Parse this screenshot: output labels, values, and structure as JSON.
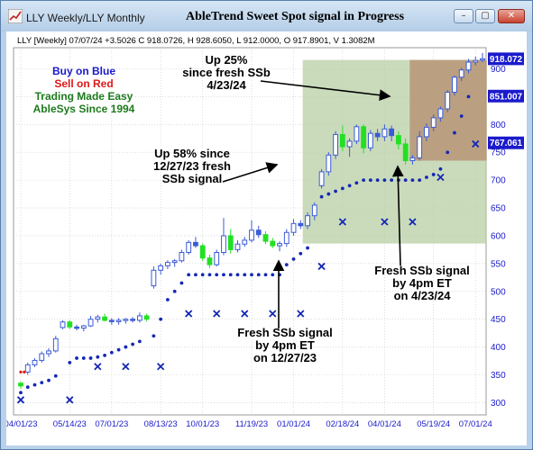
{
  "window": {
    "tab_title": "LLY Weekly/LLY Monthly",
    "title": "AbleTrend Sweet Spot signal in Progress",
    "buttons": {
      "minimize": "–",
      "maximize": "▢",
      "close": "✕"
    }
  },
  "colors": {
    "buy": "#22e022",
    "sell": "#e01818",
    "neutral": "#3b5bd6",
    "dots": "#1428b4",
    "axis_text": "#1a1acc",
    "grid": "#c8c8c8",
    "zone_green": "#b4cc9e",
    "zone_brown": "#b48c6e"
  },
  "chart_data": {
    "type": "candlestick",
    "info_line": "LLY [Weekly] 07/07/24 +3.5026 C 918.0726, H 928.6050, L 912.0000, O 917.8901, V 1.3082M",
    "x_ticks": [
      "04/01/23",
      "05/14/23",
      "07/01/23",
      "08/13/23",
      "10/01/23",
      "11/19/23",
      "01/01/24",
      "02/18/24",
      "04/01/24",
      "05/19/24",
      "07/01/24"
    ],
    "y_ticks": [
      300,
      350,
      400,
      450,
      500,
      550,
      600,
      650,
      700,
      750,
      800,
      850,
      900
    ],
    "ylim": [
      278,
      938
    ],
    "price_labels": [
      "918.072",
      "851.007",
      "767.061"
    ],
    "price_label_values": [
      918,
      851,
      767
    ],
    "legend": [
      {
        "text": "Buy on Blue",
        "color": "#1a1acc"
      },
      {
        "text": "Sell on Red",
        "color": "#e01818"
      },
      {
        "text": "Trading Made Easy",
        "color": "#1e7a1e"
      },
      {
        "text": "AbleSys Since 1994",
        "color": "#1e7a1e"
      }
    ],
    "annotations": {
      "up25": [
        "Up 25%",
        "since fresh SSb",
        "4/23/24"
      ],
      "up58": [
        "Up 58% since",
        "12/27/23 fresh",
        "SSb signal"
      ],
      "fresh_apr": [
        "Fresh SSb signal",
        "by 4pm ET",
        "on 4/23/24"
      ],
      "fresh_dec": [
        "Fresh SSb signal",
        "by 4pm ET",
        "on 12/27/23"
      ]
    },
    "candles": [
      {
        "o": 330,
        "h": 338,
        "l": 325,
        "c": 335,
        "s": "buy"
      },
      {
        "o": 355,
        "h": 372,
        "l": 350,
        "c": 368,
        "s": "neutral"
      },
      {
        "o": 368,
        "h": 380,
        "l": 364,
        "c": 376,
        "s": "neutral"
      },
      {
        "o": 376,
        "h": 392,
        "l": 372,
        "c": 388,
        "s": "neutral"
      },
      {
        "o": 388,
        "h": 398,
        "l": 382,
        "c": 393,
        "s": "neutral"
      },
      {
        "o": 393,
        "h": 420,
        "l": 390,
        "c": 415,
        "s": "neutral"
      },
      {
        "o": 435,
        "h": 448,
        "l": 432,
        "c": 445,
        "s": "neutral"
      },
      {
        "o": 445,
        "h": 448,
        "l": 432,
        "c": 436,
        "s": "buy"
      },
      {
        "o": 436,
        "h": 440,
        "l": 430,
        "c": 434,
        "s": "neutral"
      },
      {
        "o": 434,
        "h": 440,
        "l": 428,
        "c": 438,
        "s": "neutral"
      },
      {
        "o": 438,
        "h": 456,
        "l": 436,
        "c": 450,
        "s": "neutral"
      },
      {
        "o": 450,
        "h": 458,
        "l": 444,
        "c": 454,
        "s": "neutral"
      },
      {
        "o": 454,
        "h": 460,
        "l": 446,
        "c": 448,
        "s": "buy"
      },
      {
        "o": 448,
        "h": 452,
        "l": 440,
        "c": 446,
        "s": "neutral"
      },
      {
        "o": 446,
        "h": 452,
        "l": 440,
        "c": 448,
        "s": "neutral"
      },
      {
        "o": 448,
        "h": 452,
        "l": 442,
        "c": 450,
        "s": "neutral"
      },
      {
        "o": 450,
        "h": 454,
        "l": 444,
        "c": 448,
        "s": "neutral"
      },
      {
        "o": 448,
        "h": 462,
        "l": 444,
        "c": 456,
        "s": "neutral"
      },
      {
        "o": 456,
        "h": 460,
        "l": 446,
        "c": 450,
        "s": "buy"
      },
      {
        "o": 510,
        "h": 545,
        "l": 505,
        "c": 538,
        "s": "neutral"
      },
      {
        "o": 538,
        "h": 550,
        "l": 530,
        "c": 546,
        "s": "neutral"
      },
      {
        "o": 546,
        "h": 556,
        "l": 540,
        "c": 552,
        "s": "neutral"
      },
      {
        "o": 552,
        "h": 558,
        "l": 544,
        "c": 555,
        "s": "neutral"
      },
      {
        "o": 555,
        "h": 575,
        "l": 552,
        "c": 570,
        "s": "neutral"
      },
      {
        "o": 570,
        "h": 592,
        "l": 566,
        "c": 588,
        "s": "neutral"
      },
      {
        "o": 588,
        "h": 598,
        "l": 578,
        "c": 582,
        "s": "neutral"
      },
      {
        "o": 582,
        "h": 586,
        "l": 555,
        "c": 560,
        "s": "buy"
      },
      {
        "o": 560,
        "h": 566,
        "l": 542,
        "c": 548,
        "s": "buy"
      },
      {
        "o": 548,
        "h": 575,
        "l": 545,
        "c": 570,
        "s": "neutral"
      },
      {
        "o": 570,
        "h": 632,
        "l": 565,
        "c": 600,
        "s": "neutral"
      },
      {
        "o": 600,
        "h": 612,
        "l": 568,
        "c": 575,
        "s": "buy"
      },
      {
        "o": 575,
        "h": 592,
        "l": 570,
        "c": 585,
        "s": "neutral"
      },
      {
        "o": 585,
        "h": 598,
        "l": 580,
        "c": 592,
        "s": "neutral"
      },
      {
        "o": 592,
        "h": 628,
        "l": 588,
        "c": 610,
        "s": "neutral"
      },
      {
        "o": 610,
        "h": 618,
        "l": 596,
        "c": 602,
        "s": "neutral"
      },
      {
        "o": 602,
        "h": 608,
        "l": 585,
        "c": 590,
        "s": "buy"
      },
      {
        "o": 590,
        "h": 596,
        "l": 578,
        "c": 582,
        "s": "buy"
      },
      {
        "o": 582,
        "h": 590,
        "l": 572,
        "c": 586,
        "s": "neutral"
      },
      {
        "o": 586,
        "h": 612,
        "l": 580,
        "c": 606,
        "s": "neutral"
      },
      {
        "o": 606,
        "h": 630,
        "l": 600,
        "c": 622,
        "s": "neutral"
      },
      {
        "o": 622,
        "h": 628,
        "l": 612,
        "c": 618,
        "s": "neutral"
      },
      {
        "o": 618,
        "h": 642,
        "l": 612,
        "c": 636,
        "s": "neutral"
      },
      {
        "o": 636,
        "h": 660,
        "l": 628,
        "c": 655,
        "s": "neutral"
      },
      {
        "o": 690,
        "h": 720,
        "l": 685,
        "c": 715,
        "s": "neutral"
      },
      {
        "o": 715,
        "h": 750,
        "l": 708,
        "c": 745,
        "s": "neutral"
      },
      {
        "o": 745,
        "h": 788,
        "l": 738,
        "c": 782,
        "s": "neutral"
      },
      {
        "o": 782,
        "h": 798,
        "l": 752,
        "c": 760,
        "s": "buy"
      },
      {
        "o": 760,
        "h": 775,
        "l": 742,
        "c": 770,
        "s": "neutral"
      },
      {
        "o": 770,
        "h": 800,
        "l": 765,
        "c": 796,
        "s": "neutral"
      },
      {
        "o": 796,
        "h": 800,
        "l": 748,
        "c": 758,
        "s": "buy"
      },
      {
        "o": 758,
        "h": 790,
        "l": 752,
        "c": 784,
        "s": "neutral"
      },
      {
        "o": 784,
        "h": 792,
        "l": 770,
        "c": 778,
        "s": "neutral"
      },
      {
        "o": 778,
        "h": 800,
        "l": 770,
        "c": 792,
        "s": "neutral"
      },
      {
        "o": 792,
        "h": 798,
        "l": 770,
        "c": 780,
        "s": "neutral"
      },
      {
        "o": 780,
        "h": 788,
        "l": 755,
        "c": 765,
        "s": "buy"
      },
      {
        "o": 765,
        "h": 775,
        "l": 728,
        "c": 735,
        "s": "buy"
      },
      {
        "o": 735,
        "h": 745,
        "l": 728,
        "c": 740,
        "s": "neutral"
      },
      {
        "o": 740,
        "h": 788,
        "l": 735,
        "c": 778,
        "s": "neutral"
      },
      {
        "o": 778,
        "h": 802,
        "l": 770,
        "c": 795,
        "s": "neutral"
      },
      {
        "o": 795,
        "h": 818,
        "l": 788,
        "c": 812,
        "s": "neutral"
      },
      {
        "o": 812,
        "h": 832,
        "l": 805,
        "c": 828,
        "s": "neutral"
      },
      {
        "o": 828,
        "h": 862,
        "l": 822,
        "c": 858,
        "s": "neutral"
      },
      {
        "o": 858,
        "h": 888,
        "l": 852,
        "c": 885,
        "s": "neutral"
      },
      {
        "o": 885,
        "h": 902,
        "l": 878,
        "c": 898,
        "s": "neutral"
      },
      {
        "o": 898,
        "h": 918,
        "l": 892,
        "c": 912,
        "s": "neutral"
      },
      {
        "o": 912,
        "h": 922,
        "l": 906,
        "c": 915,
        "s": "neutral"
      },
      {
        "o": 917.89,
        "h": 928.6,
        "l": 912,
        "c": 918.07,
        "s": "neutral"
      }
    ],
    "dot_series": [
      {
        "i": 0,
        "v": 318
      },
      {
        "i": 1,
        "v": 328
      },
      {
        "i": 2,
        "v": 332
      },
      {
        "i": 3,
        "v": 336
      },
      {
        "i": 4,
        "v": 340
      },
      {
        "i": 5,
        "v": 348
      },
      {
        "i": 7,
        "v": 372
      },
      {
        "i": 8,
        "v": 380
      },
      {
        "i": 9,
        "v": 380
      },
      {
        "i": 10,
        "v": 380
      },
      {
        "i": 11,
        "v": 382
      },
      {
        "i": 12,
        "v": 385
      },
      {
        "i": 13,
        "v": 390
      },
      {
        "i": 14,
        "v": 395
      },
      {
        "i": 15,
        "v": 400
      },
      {
        "i": 16,
        "v": 405
      },
      {
        "i": 17,
        "v": 410
      },
      {
        "i": 19,
        "v": 420
      },
      {
        "i": 20,
        "v": 450
      },
      {
        "i": 21,
        "v": 485
      },
      {
        "i": 22,
        "v": 500
      },
      {
        "i": 23,
        "v": 515
      },
      {
        "i": 24,
        "v": 530
      },
      {
        "i": 25,
        "v": 530
      },
      {
        "i": 26,
        "v": 530
      },
      {
        "i": 27,
        "v": 530
      },
      {
        "i": 28,
        "v": 530
      },
      {
        "i": 29,
        "v": 530
      },
      {
        "i": 30,
        "v": 530
      },
      {
        "i": 31,
        "v": 530
      },
      {
        "i": 32,
        "v": 530
      },
      {
        "i": 33,
        "v": 530
      },
      {
        "i": 34,
        "v": 530
      },
      {
        "i": 35,
        "v": 530
      },
      {
        "i": 36,
        "v": 530
      },
      {
        "i": 37,
        "v": 530
      },
      {
        "i": 38,
        "v": 548
      },
      {
        "i": 39,
        "v": 558
      },
      {
        "i": 40,
        "v": 568
      },
      {
        "i": 41,
        "v": 578
      },
      {
        "i": 43,
        "v": 670
      },
      {
        "i": 44,
        "v": 675
      },
      {
        "i": 45,
        "v": 680
      },
      {
        "i": 46,
        "v": 685
      },
      {
        "i": 47,
        "v": 690
      },
      {
        "i": 48,
        "v": 695
      },
      {
        "i": 49,
        "v": 700
      },
      {
        "i": 50,
        "v": 700
      },
      {
        "i": 51,
        "v": 700
      },
      {
        "i": 52,
        "v": 700
      },
      {
        "i": 53,
        "v": 700
      },
      {
        "i": 54,
        "v": 700
      },
      {
        "i": 55,
        "v": 700
      },
      {
        "i": 56,
        "v": 700
      },
      {
        "i": 57,
        "v": 700
      },
      {
        "i": 58,
        "v": 705
      },
      {
        "i": 59,
        "v": 710
      },
      {
        "i": 60,
        "v": 720
      },
      {
        "i": 61,
        "v": 750
      },
      {
        "i": 62,
        "v": 785
      },
      {
        "i": 63,
        "v": 815
      },
      {
        "i": 64,
        "v": 850
      }
    ],
    "cross_markers": [
      {
        "i": 0,
        "v": 305
      },
      {
        "i": 7,
        "v": 305
      },
      {
        "i": 11,
        "v": 365
      },
      {
        "i": 15,
        "v": 365
      },
      {
        "i": 20,
        "v": 365
      },
      {
        "i": 24,
        "v": 460
      },
      {
        "i": 28,
        "v": 460
      },
      {
        "i": 32,
        "v": 460
      },
      {
        "i": 36,
        "v": 460
      },
      {
        "i": 40,
        "v": 460
      },
      {
        "i": 43,
        "v": 545
      },
      {
        "i": 46,
        "v": 625
      },
      {
        "i": 52,
        "v": 625
      },
      {
        "i": 56,
        "v": 625
      },
      {
        "i": 60,
        "v": 705
      },
      {
        "i": 65,
        "v": 765
      }
    ],
    "red_dots": [
      {
        "i": 0,
        "v": 355
      },
      {
        "i": 0.5,
        "v": 355
      }
    ],
    "zones": [
      {
        "name": "green",
        "i0": 40.3,
        "i1": 66.6,
        "v0": 586,
        "v1": 916
      },
      {
        "name": "brown",
        "i0": 55.6,
        "i1": 66.6,
        "v0": 735,
        "v1": 916
      }
    ]
  }
}
